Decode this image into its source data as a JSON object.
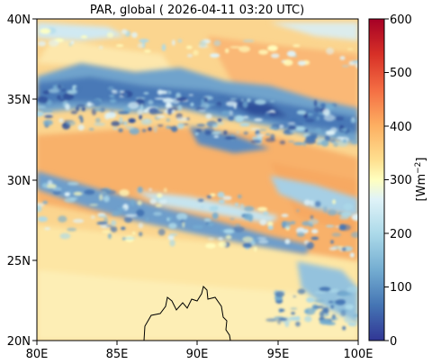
{
  "title": "PAR, global ( 2026-04-11 03:20 UTC)",
  "map": {
    "y_ticks": [
      "40N",
      "35N",
      "30N",
      "25N",
      "20N"
    ],
    "x_ticks": [
      "80E",
      "85E",
      "90E",
      "95E",
      "100E"
    ],
    "lon_range": [
      80,
      100
    ],
    "lat_range": [
      20,
      40
    ]
  },
  "colorbar": {
    "label_main": "[Wm",
    "label_exp": "−2",
    "label_close": "]",
    "ticks": [
      "600",
      "500",
      "400",
      "300",
      "200",
      "100",
      "0"
    ],
    "range": [
      0,
      600
    ],
    "colors": [
      "#313695",
      "#4575b4",
      "#74add1",
      "#abd9e9",
      "#e0f3f8",
      "#fee090",
      "#fdae61",
      "#f46d43",
      "#d73027",
      "#a50026"
    ]
  }
}
